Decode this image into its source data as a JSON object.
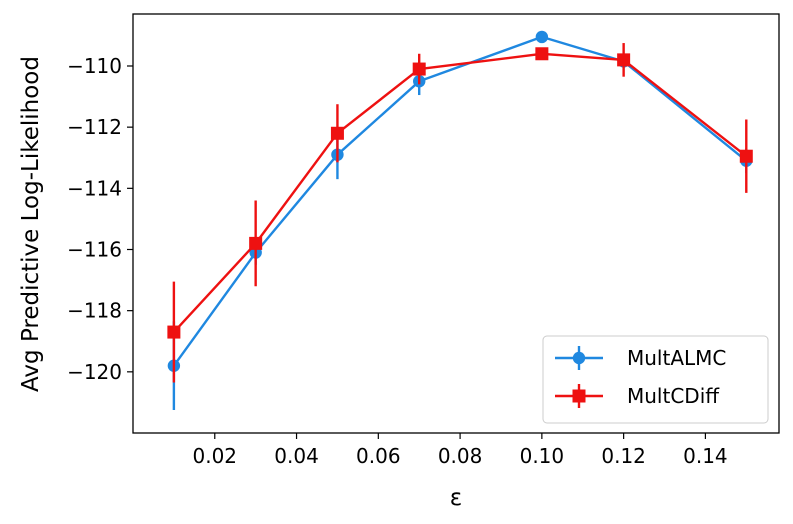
{
  "chart_data": {
    "type": "line",
    "xlabel": "ε",
    "ylabel": "Avg Predictive Log-Likelihood",
    "xlim": [
      0.0,
      0.158
    ],
    "ylim": [
      -122.0,
      -108.3
    ],
    "x_ticks": [
      0.02,
      0.04,
      0.06,
      0.08,
      0.1,
      0.12,
      0.14
    ],
    "x_tick_labels": [
      "0.02",
      "0.04",
      "0.06",
      "0.08",
      "0.10",
      "0.12",
      "0.14"
    ],
    "y_ticks": [
      -120,
      -118,
      -116,
      -114,
      -112,
      -110
    ],
    "y_tick_labels": [
      "−120",
      "−118",
      "−116",
      "−114",
      "−112",
      "−110"
    ],
    "legend_position": "lower-right",
    "grid": false,
    "x": [
      0.01,
      0.03,
      0.05,
      0.07,
      0.1,
      0.12,
      0.15
    ],
    "series": [
      {
        "name": "MultALMC",
        "color": "#1f88e0",
        "marker": "circle",
        "values": [
          -119.8,
          -116.1,
          -112.9,
          -110.5,
          -109.05,
          -109.85,
          -113.1
        ],
        "err_lower": [
          1.45,
          0.4,
          0.8,
          0.45,
          0.0,
          0.0,
          0.4
        ],
        "err_upper": [
          1.45,
          0.4,
          0.8,
          0.45,
          0.0,
          0.0,
          0.4
        ]
      },
      {
        "name": "MultCDiff",
        "color": "#ee1111",
        "marker": "square",
        "values": [
          -118.7,
          -115.8,
          -112.2,
          -110.1,
          -109.6,
          -109.8,
          -112.95
        ],
        "err_lower": [
          1.65,
          1.4,
          0.95,
          0.5,
          0.0,
          0.55,
          1.2
        ],
        "err_upper": [
          1.65,
          1.4,
          0.95,
          0.5,
          0.0,
          0.55,
          1.2
        ]
      }
    ]
  }
}
